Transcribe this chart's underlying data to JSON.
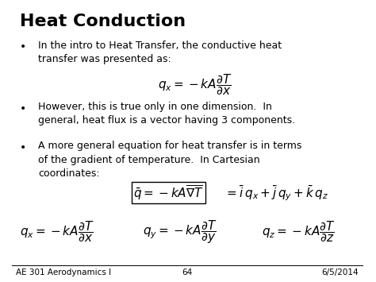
{
  "title": "Heat Conduction",
  "background_color": "#ffffff",
  "text_color": "#000000",
  "figsize": [
    4.74,
    3.55
  ],
  "dpi": 100,
  "bullet1": "In the intro to Heat Transfer, the conductive heat\ntransfer was presented as:",
  "bullet2": "However, this is true only in one dimension.  In\ngeneral, heat flux is a vector having 3 components.",
  "bullet3": "A more general equation for heat transfer is in terms\nof the gradient of temperature.  In Cartesian\ncoordinates:",
  "footer_left": "AE 301 Aerodynamics I",
  "footer_center": "64",
  "footer_right": "6/5/2014",
  "title_fontsize": 16,
  "body_fontsize": 9,
  "eq_fontsize": 11,
  "footer_fontsize": 7.5
}
